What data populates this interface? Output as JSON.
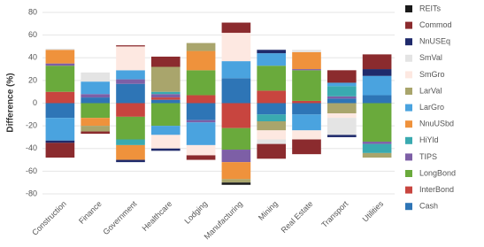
{
  "chart_data": {
    "type": "stacked_bar",
    "y_label": "Difference (%)",
    "categories": [
      "Construction",
      "Finance",
      "Government",
      "Healthcare",
      "Lodging",
      "Manufacturing",
      "Mining",
      "Real Estate",
      "Transport",
      "Utilities"
    ],
    "ylim": [
      -80,
      80
    ],
    "yticks": [
      -80,
      -60,
      -40,
      -20,
      0,
      20,
      40,
      60,
      80
    ],
    "grid": true,
    "series": [
      {
        "name": "REITs",
        "color": "#1a1a1a",
        "values": [
          0,
          0,
          0,
          0,
          0,
          -2,
          0,
          0,
          0,
          0
        ]
      },
      {
        "name": "Commod",
        "color": "#8b2b2e",
        "values": [
          -13,
          -2,
          1,
          9,
          -4,
          9,
          -13,
          -13,
          11,
          13
        ]
      },
      {
        "name": "NnUSEq",
        "color": "#1f2a6b",
        "values": [
          -2,
          0,
          -2,
          -2,
          0,
          0,
          3,
          0,
          -2,
          6
        ]
      },
      {
        "name": "SmVal",
        "color": "#e4e4e4",
        "values": [
          1,
          8,
          0,
          0,
          0,
          0,
          -4,
          2,
          -15,
          0
        ]
      },
      {
        "name": "SmGro",
        "color": "#fde8e1",
        "values": [
          0,
          0,
          21,
          -12,
          -9,
          25,
          -8,
          -8,
          -4,
          0
        ]
      },
      {
        "name": "LarVal",
        "color": "#a9a56c",
        "values": [
          0,
          -5,
          0,
          22,
          7,
          -3,
          -8,
          0,
          -9,
          -4
        ]
      },
      {
        "name": "LarGro",
        "color": "#4aa3df",
        "values": [
          -20,
          11,
          8,
          -8,
          -20,
          15,
          11,
          -14,
          3,
          17
        ]
      },
      {
        "name": "NnuUSbd",
        "color": "#ef923c",
        "values": [
          12,
          -7,
          -13,
          0,
          17,
          -15,
          0,
          15,
          0,
          0
        ]
      },
      {
        "name": "HiYld",
        "color": "#3aaab0",
        "values": [
          0,
          0,
          -5,
          2,
          0,
          0,
          -6,
          0,
          9,
          -8
        ]
      },
      {
        "name": "TIPS",
        "color": "#7d5fa6",
        "values": [
          2,
          3,
          4,
          3,
          -2,
          -11,
          0,
          1,
          2,
          -2
        ]
      },
      {
        "name": "LongBond",
        "color": "#6aaa3c",
        "values": [
          23,
          -13,
          -20,
          -20,
          22,
          -19,
          22,
          27,
          0,
          -34
        ]
      },
      {
        "name": "InterBond",
        "color": "#c8453f",
        "values": [
          10,
          0,
          -12,
          2,
          7,
          -22,
          11,
          2,
          0,
          0
        ]
      },
      {
        "name": "Cash",
        "color": "#2e75b6",
        "values": [
          -13,
          5,
          17,
          3,
          -15,
          22,
          -10,
          -10,
          4,
          7
        ]
      }
    ]
  }
}
